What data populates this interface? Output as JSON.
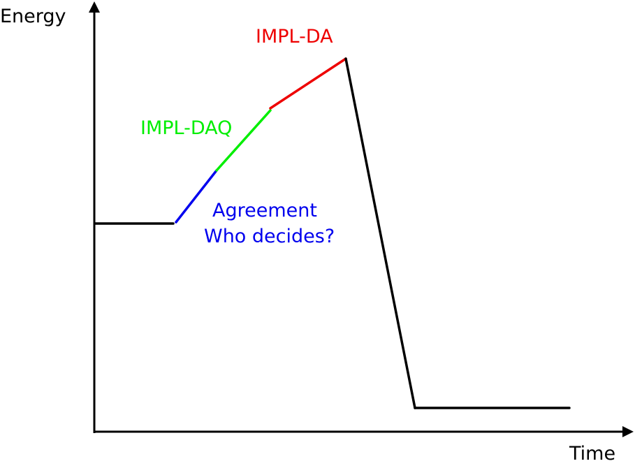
{
  "axes": {
    "y_label": "Energy",
    "x_label": "Time",
    "axis_color": "#000000"
  },
  "segments": [
    {
      "id": "baseline",
      "color": "#000000"
    },
    {
      "id": "agreement",
      "color": "#0000ee"
    },
    {
      "id": "impl-daq",
      "color": "#00ee00"
    },
    {
      "id": "impl-da",
      "color": "#ee0000"
    },
    {
      "id": "drop",
      "color": "#000000"
    },
    {
      "id": "final",
      "color": "#000000"
    }
  ],
  "labels": {
    "impl_da": "IMPL-DA",
    "impl_daq": "IMPL-DAQ",
    "agreement_line1": "Agreement",
    "agreement_line2": "Who decides?"
  },
  "colors": {
    "impl_da": "#ee0000",
    "impl_daq": "#00ee00",
    "agreement": "#0000ee"
  }
}
